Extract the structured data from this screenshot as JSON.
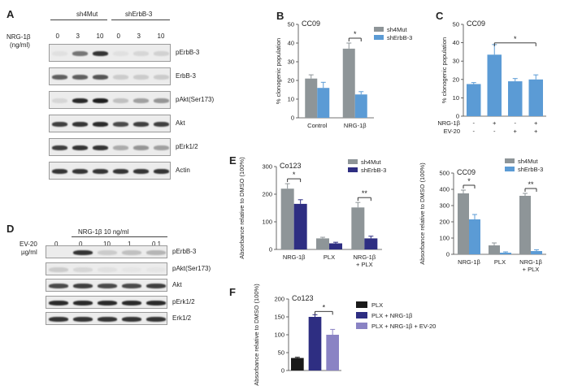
{
  "panelA": {
    "letter": "A",
    "group1": "sh4Mut",
    "group2": "shErbB-3",
    "treatment_label": "NRG-1β",
    "treatment_unit": "(ng/ml)",
    "doses": [
      "0",
      "3",
      "10",
      "0",
      "3",
      "10"
    ],
    "rows": [
      {
        "label": "pErbB-3",
        "levels": [
          0.05,
          0.55,
          0.85,
          0.05,
          0.1,
          0.12
        ]
      },
      {
        "label": "ErbB-3",
        "levels": [
          0.65,
          0.65,
          0.7,
          0.15,
          0.15,
          0.15
        ]
      },
      {
        "label": "pAkt(Ser173)",
        "levels": [
          0.1,
          0.9,
          0.95,
          0.2,
          0.35,
          0.4
        ]
      },
      {
        "label": "Akt",
        "levels": [
          0.8,
          0.85,
          0.9,
          0.75,
          0.8,
          0.8
        ]
      },
      {
        "label": "pErk1/2",
        "levels": [
          0.8,
          0.85,
          0.85,
          0.3,
          0.4,
          0.35
        ]
      },
      {
        "label": "Actin",
        "levels": [
          0.85,
          0.85,
          0.85,
          0.85,
          0.85,
          0.85
        ]
      }
    ]
  },
  "panelD": {
    "letter": "D",
    "group": "NRG-1β 10 ng/ml",
    "treatment_label": "EV-20",
    "treatment_unit": "µg/ml",
    "doses": [
      "0",
      "0",
      "10",
      "1",
      "0,1"
    ],
    "rows": [
      {
        "label": "pErbB-3",
        "levels": [
          0.0,
          0.85,
          0.15,
          0.2,
          0.25
        ]
      },
      {
        "label": "pAkt(Ser173)",
        "levels": [
          0.15,
          0.1,
          0.05,
          0.03,
          0.03
        ]
      },
      {
        "label": "Akt",
        "levels": [
          0.75,
          0.8,
          0.75,
          0.75,
          0.8
        ]
      },
      {
        "label": "pErk1/2",
        "levels": [
          0.9,
          0.9,
          0.9,
          0.9,
          0.9
        ]
      },
      {
        "label": "Erk1/2",
        "levels": [
          0.85,
          0.85,
          0.85,
          0.85,
          0.85
        ]
      }
    ]
  },
  "colors": {
    "grey": "#8e9598",
    "lightblue": "#5b9bd5",
    "navy": "#2e2e82",
    "purple": "#8a83c4",
    "black": "#1a1a1a"
  },
  "chart_data": [
    {
      "panel": "B",
      "type": "bar",
      "title": "CC09",
      "ylabel": "% clonogenic population",
      "ylim": [
        0,
        50
      ],
      "yticks": [
        0,
        10,
        20,
        30,
        40,
        50
      ],
      "categories": [
        "Control",
        "NRG-1β"
      ],
      "series": [
        {
          "name": "sh4Mut",
          "values": [
            21,
            37
          ],
          "errors": [
            2,
            3
          ]
        },
        {
          "name": "shErbB-3",
          "values": [
            16,
            12.5
          ],
          "errors": [
            3,
            1.5
          ]
        }
      ],
      "legend": "top-right",
      "significance": [
        {
          "label": "*",
          "category": "NRG-1β"
        }
      ]
    },
    {
      "panel": "C",
      "type": "bar",
      "title": "CC09",
      "ylabel": "% clonogenic population",
      "ylim": [
        0,
        50
      ],
      "yticks": [
        0,
        10,
        20,
        30,
        40,
        50
      ],
      "categories": [
        "1",
        "2",
        "3",
        "4"
      ],
      "values": [
        17.5,
        33.5,
        19,
        20
      ],
      "errors": [
        0.8,
        5.5,
        1.5,
        2.5
      ],
      "rows": [
        {
          "label": "NRG-1β",
          "marks": [
            "-",
            "+",
            "-",
            "+"
          ]
        },
        {
          "label": "EV-20",
          "marks": [
            "-",
            "-",
            "+",
            "+"
          ]
        }
      ],
      "significance": [
        {
          "label": "*",
          "from": 1,
          "to": 3
        }
      ]
    },
    {
      "panel": "E1",
      "type": "bar",
      "title": "Co123",
      "ylabel": "Absorbance relative to DMSO (100%)",
      "ylim": [
        0,
        300
      ],
      "yticks": [
        0,
        100,
        200,
        300
      ],
      "categories": [
        "NRG-1β",
        "PLX",
        "NRG-1β + PLX"
      ],
      "series": [
        {
          "name": "sh4Mut",
          "values": [
            220,
            40,
            152
          ],
          "errors": [
            18,
            4,
            18
          ]
        },
        {
          "name": "shErbB-3",
          "values": [
            165,
            22,
            40
          ],
          "errors": [
            15,
            4,
            8
          ]
        }
      ],
      "legend": "top-right",
      "significance": [
        {
          "label": "*",
          "category": "NRG-1β"
        },
        {
          "label": "**",
          "category": "NRG-1β + PLX"
        }
      ]
    },
    {
      "panel": "E2",
      "type": "bar",
      "title": "CC09",
      "ylabel": "Absorbance relative to DMSO (100%)",
      "ylim": [
        0,
        500
      ],
      "yticks": [
        0,
        100,
        200,
        300,
        400,
        500
      ],
      "categories": [
        "NRG-1β",
        "PLX",
        "NRG-1β + PLX"
      ],
      "series": [
        {
          "name": "sh4Mut",
          "values": [
            375,
            55,
            360
          ],
          "errors": [
            20,
            15,
            15
          ]
        },
        {
          "name": "shErbB-3",
          "values": [
            215,
            10,
            20
          ],
          "errors": [
            30,
            5,
            8
          ]
        }
      ],
      "legend": "top-right",
      "significance": [
        {
          "label": "*",
          "category": "NRG-1β"
        },
        {
          "label": "**",
          "category": "NRG-1β + PLX"
        }
      ]
    },
    {
      "panel": "F",
      "type": "bar",
      "title": "Co123",
      "ylabel": "Absorbance relative to DMSO (100%)",
      "ylim": [
        0,
        200
      ],
      "yticks": [
        0,
        50,
        100,
        150,
        200
      ],
      "categories": [
        "PLX",
        "PLX + NRG-1β",
        "PLX + NRG-1β + EV-20"
      ],
      "values": [
        35,
        150,
        100
      ],
      "errors": [
        2,
        6,
        15
      ],
      "legend": "right",
      "significance": [
        {
          "label": "*",
          "from": 1,
          "to": 2
        }
      ]
    }
  ],
  "letters": {
    "B": "B",
    "C": "C",
    "E": "E",
    "F": "F"
  }
}
